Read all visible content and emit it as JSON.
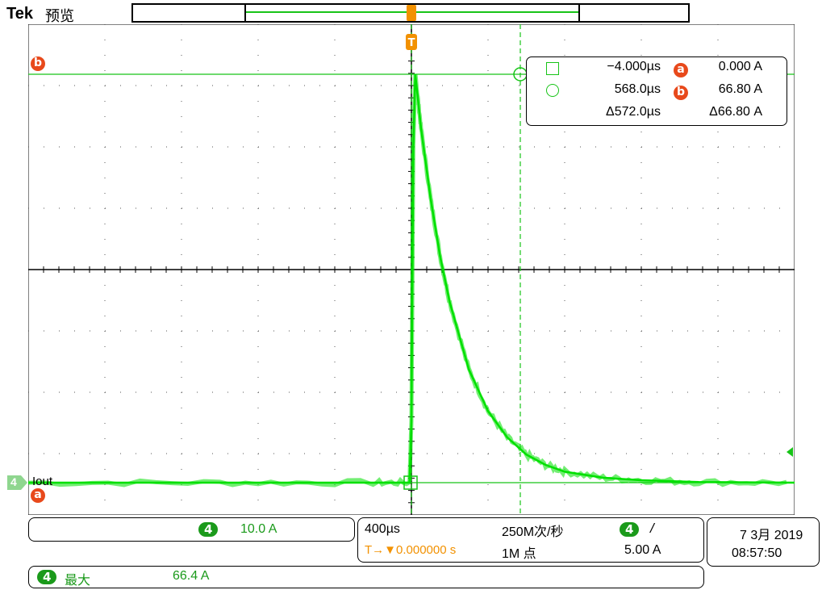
{
  "header": {
    "brand": "Tek",
    "status": "预览"
  },
  "trigger": {
    "marker": "T",
    "position_label": "T→▼0.000000 s"
  },
  "cursor_readout": {
    "square_time": "−4.000µs",
    "circle_time": "568.0µs",
    "delta_time": "Δ572.0µs",
    "a_label": "a",
    "b_label": "b",
    "a_value": "0.000 A",
    "b_value": "66.80 A",
    "delta_value": "Δ66.80 A"
  },
  "channel": {
    "number": "4",
    "label": "Iout",
    "scale": "10.0 A",
    "color": "#00e000"
  },
  "horizontal": {
    "scale": "400µs",
    "sample_rate": "250M次/秒",
    "record_length": "1M 点"
  },
  "trigger_settings": {
    "source": "4",
    "slope": "/",
    "level": "5.00 A"
  },
  "datetime": {
    "date": "7 3月 2019",
    "time": "08:57:50"
  },
  "measurement": {
    "source": "4",
    "name": "最大",
    "value": "66.4 A"
  },
  "chart_data": {
    "type": "line",
    "title": "",
    "xlabel": "",
    "ylabel": "",
    "x_units": "µs",
    "y_units": "A",
    "xlim": [
      -2000,
      2000
    ],
    "ylim": [
      -5,
      75
    ],
    "grid": true,
    "series": [
      {
        "name": "Iout",
        "x": [
          -2000,
          -1000,
          -200,
          -10,
          0,
          10,
          20,
          30,
          50,
          100,
          150,
          200,
          300,
          400,
          500,
          600,
          700,
          800,
          1000,
          1200,
          1500,
          2000
        ],
        "y": [
          0.0,
          0.0,
          0.0,
          0.0,
          10.0,
          55.0,
          66.8,
          64.0,
          58.0,
          46.5,
          37.0,
          29.5,
          18.5,
          11.7,
          7.4,
          4.6,
          2.9,
          1.8,
          0.8,
          0.4,
          0.1,
          0.0
        ]
      }
    ]
  }
}
